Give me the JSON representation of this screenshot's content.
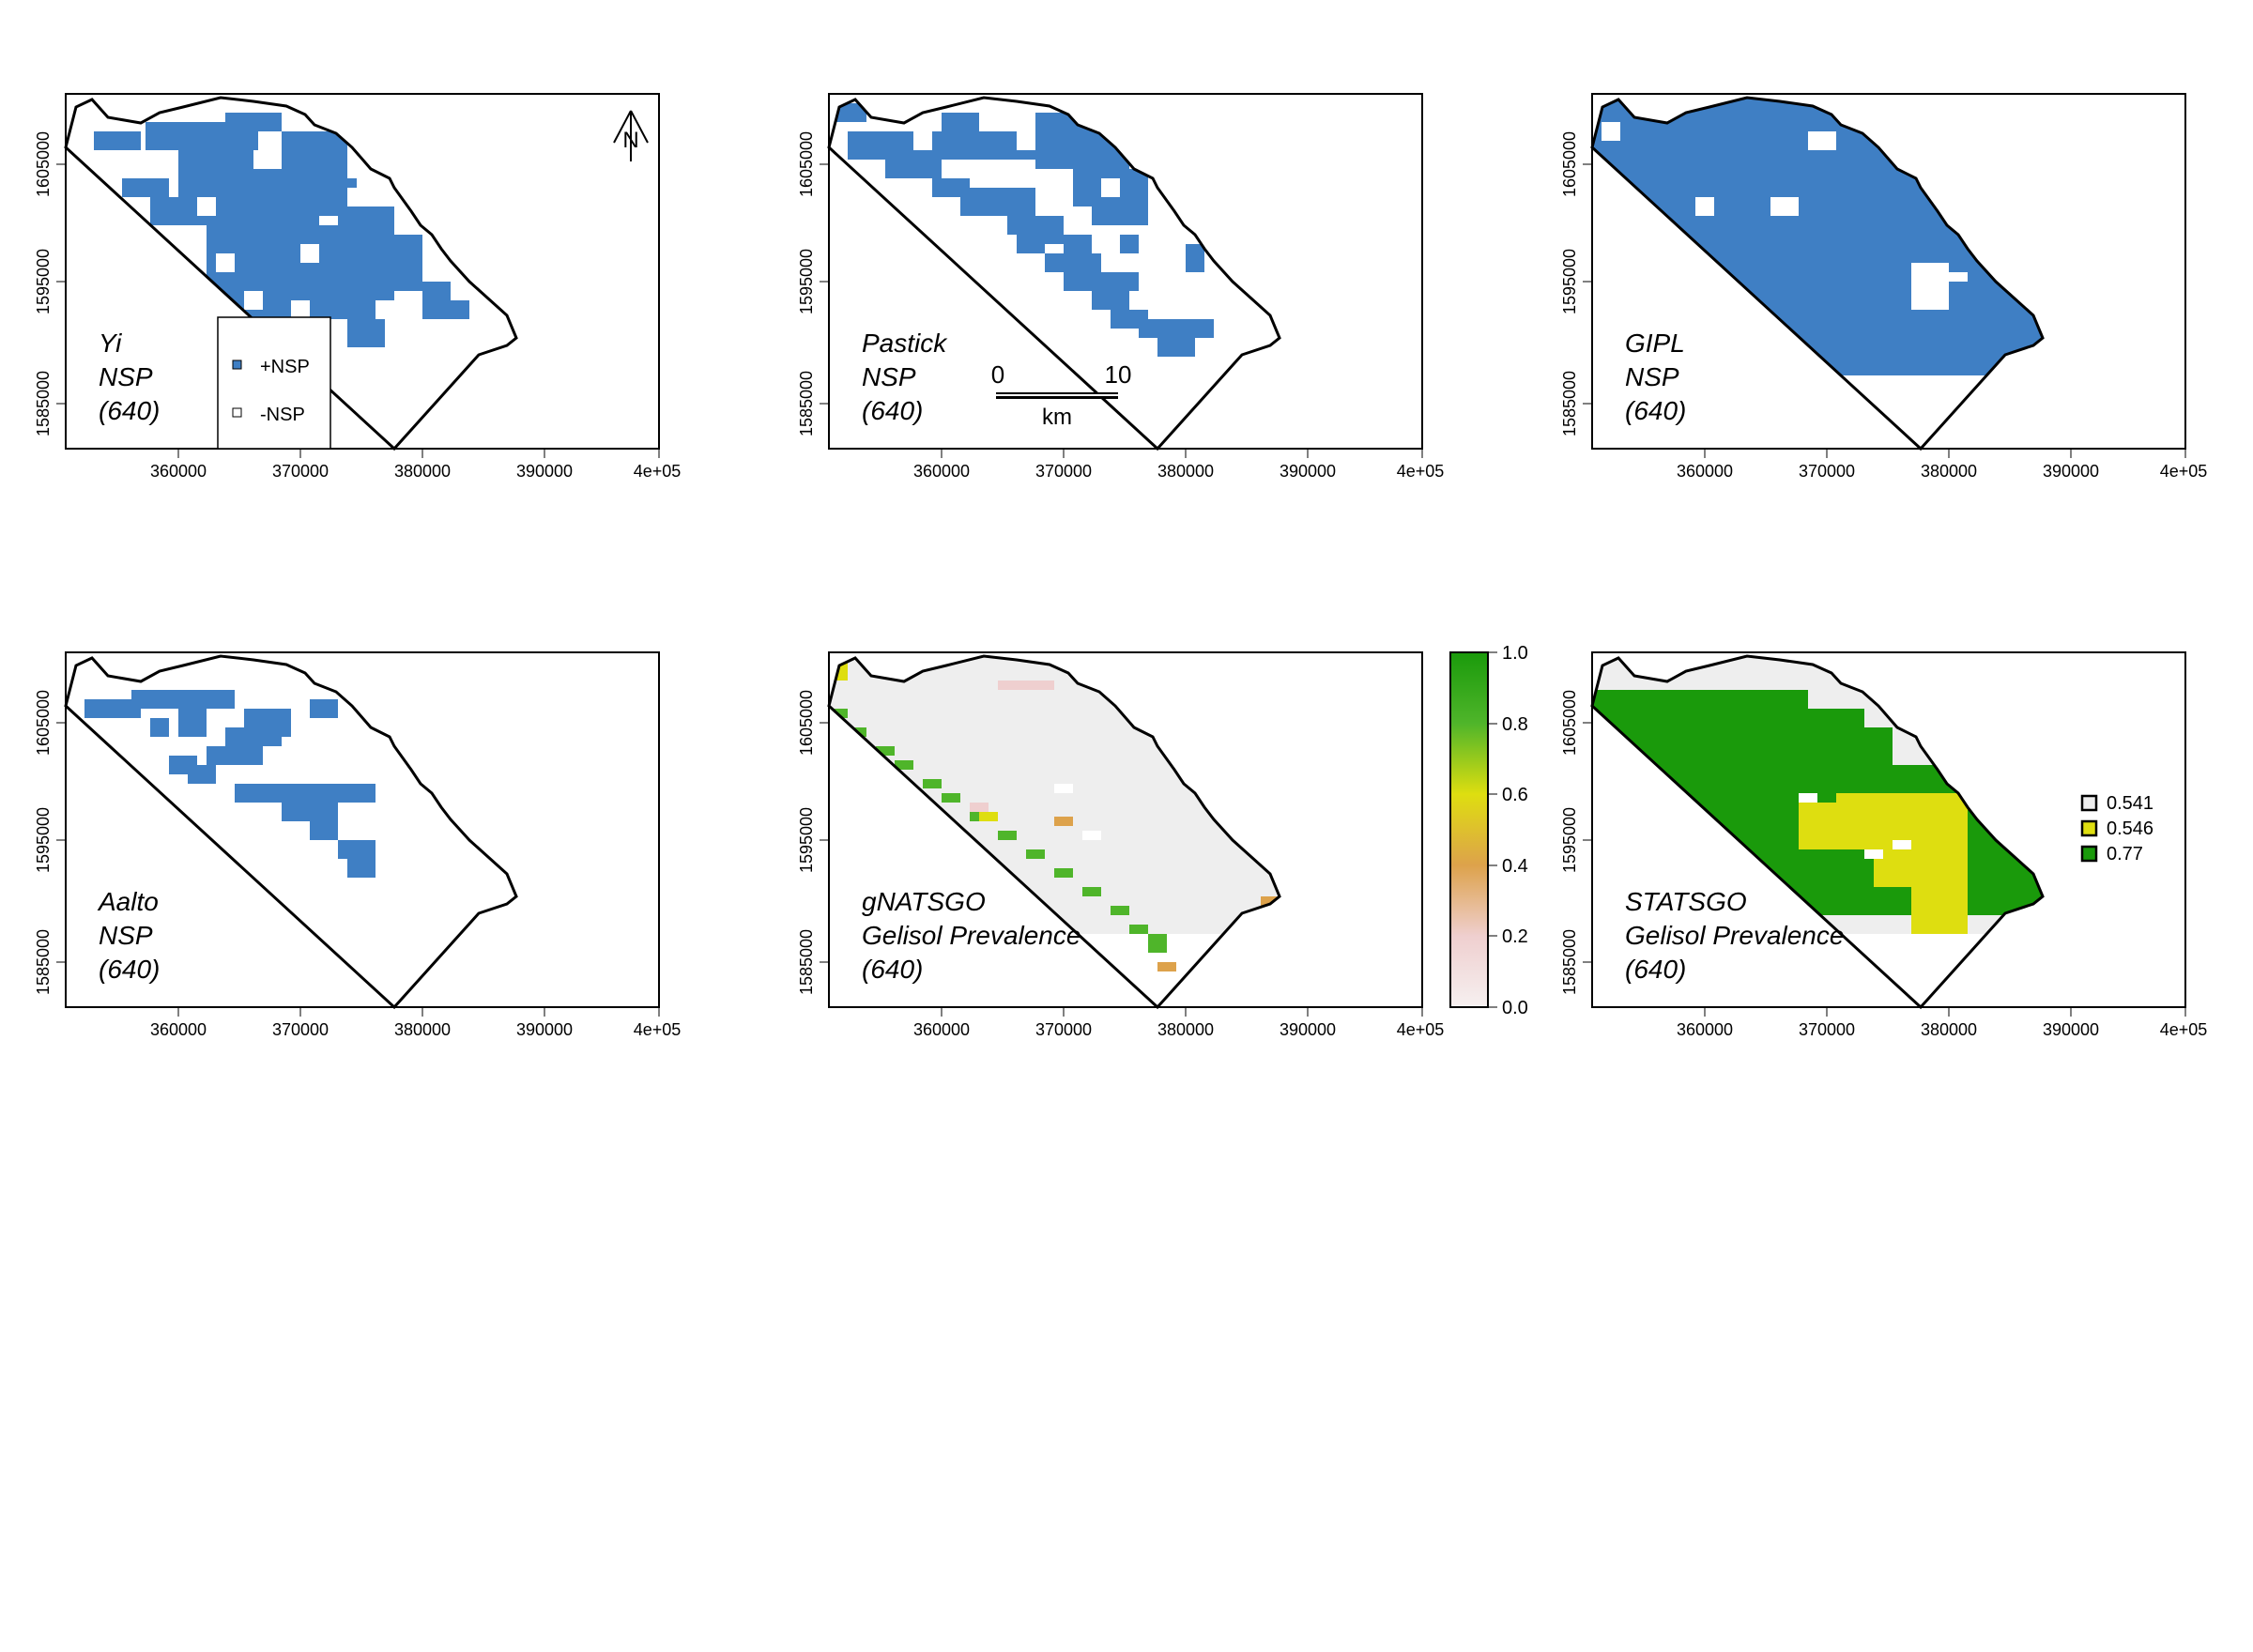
{
  "colors": {
    "nsp_blue": "#3f7fc4",
    "nodata_grey": "#eeeeee",
    "green_dark": "#1a9a0b",
    "green_mid": "#4fb52a",
    "yellow": "#dede10",
    "orange": "#dda24b",
    "pink": "#efcfcf",
    "boundary": "#000000"
  },
  "axes": {
    "x_ticks": [
      "360000",
      "370000",
      "380000",
      "390000",
      "4e+05"
    ],
    "y_ticks": [
      "1585000",
      "1595000",
      "1605000"
    ]
  },
  "panels": [
    {
      "id": "yi",
      "lines": [
        "Yi",
        "NSP",
        "(640)"
      ]
    },
    {
      "id": "pastick",
      "lines": [
        "Pastick",
        "NSP",
        "(640)"
      ]
    },
    {
      "id": "gipl",
      "lines": [
        "GIPL",
        "NSP",
        "(640)"
      ]
    },
    {
      "id": "aalto",
      "lines": [
        "Aalto",
        "NSP",
        "(640)"
      ]
    },
    {
      "id": "gnatsgo",
      "lines": [
        "gNATSGO",
        "Gelisol Prevalence",
        "(640)"
      ]
    },
    {
      "id": "statsgo",
      "lines": [
        "STATSGO",
        "Gelisol Prevalence",
        "(640)"
      ]
    }
  ],
  "nsp_legend": {
    "positive": "+NSP",
    "negative": "-NSP"
  },
  "scalebar": {
    "start": "0",
    "end": "10",
    "unit": "km"
  },
  "north_arrow": {
    "label": "N"
  },
  "colorbar": {
    "ticks": [
      "1.0",
      "0.8",
      "0.6",
      "0.4",
      "0.2",
      "0.0"
    ]
  },
  "statsgo_legend": [
    {
      "label": "0.541",
      "color": "#eeeeee"
    },
    {
      "label": "0.546",
      "color": "#dede10"
    },
    {
      "label": "0.77",
      "color": "#1a9a0b"
    }
  ]
}
